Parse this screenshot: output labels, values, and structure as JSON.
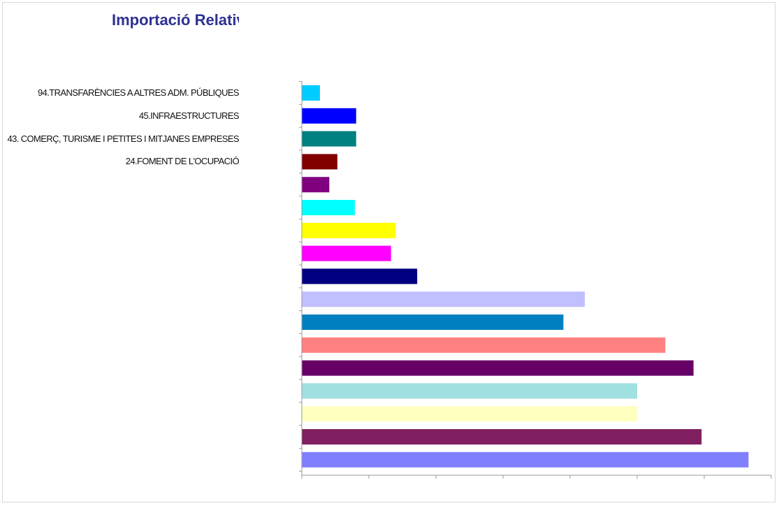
{
  "chart_data": {
    "type": "bar",
    "orientation": "horizontal",
    "title": "Importació Relativa",
    "xlabel": "",
    "ylabel": "",
    "xlim": [
      0,
      7
    ],
    "grid": false,
    "legend": "none",
    "categories": [
      "94.TRANSFARÈNCIES A ALTRES ADM. PÚBLIQUES",
      "45.INFRAESTRUCTURES",
      "43. COMERÇ, TURISME I PETITES I MITJANES EMPRESES",
      "24.FOMENT DE L'OCUPACIÓ",
      "",
      "",
      "",
      "",
      "",
      "",
      "",
      "",
      "",
      "",
      "",
      "",
      ""
    ],
    "values": [
      0.27,
      0.81,
      0.81,
      0.53,
      0.41,
      0.79,
      1.4,
      1.33,
      1.72,
      4.22,
      3.9,
      5.42,
      5.84,
      5.0,
      5.01,
      5.96,
      6.66
    ],
    "colors": [
      "#00CCFF",
      "#0000FF",
      "#008080",
      "#800000",
      "#800080",
      "#00FFFF",
      "#FFFF00",
      "#FF00FF",
      "#000080",
      "#C0C0FF",
      "#0080C0",
      "#FF8080",
      "#660066",
      "#A0E0E0",
      "#FFFFC0",
      "#7F1F5F",
      "#8080FF"
    ]
  }
}
